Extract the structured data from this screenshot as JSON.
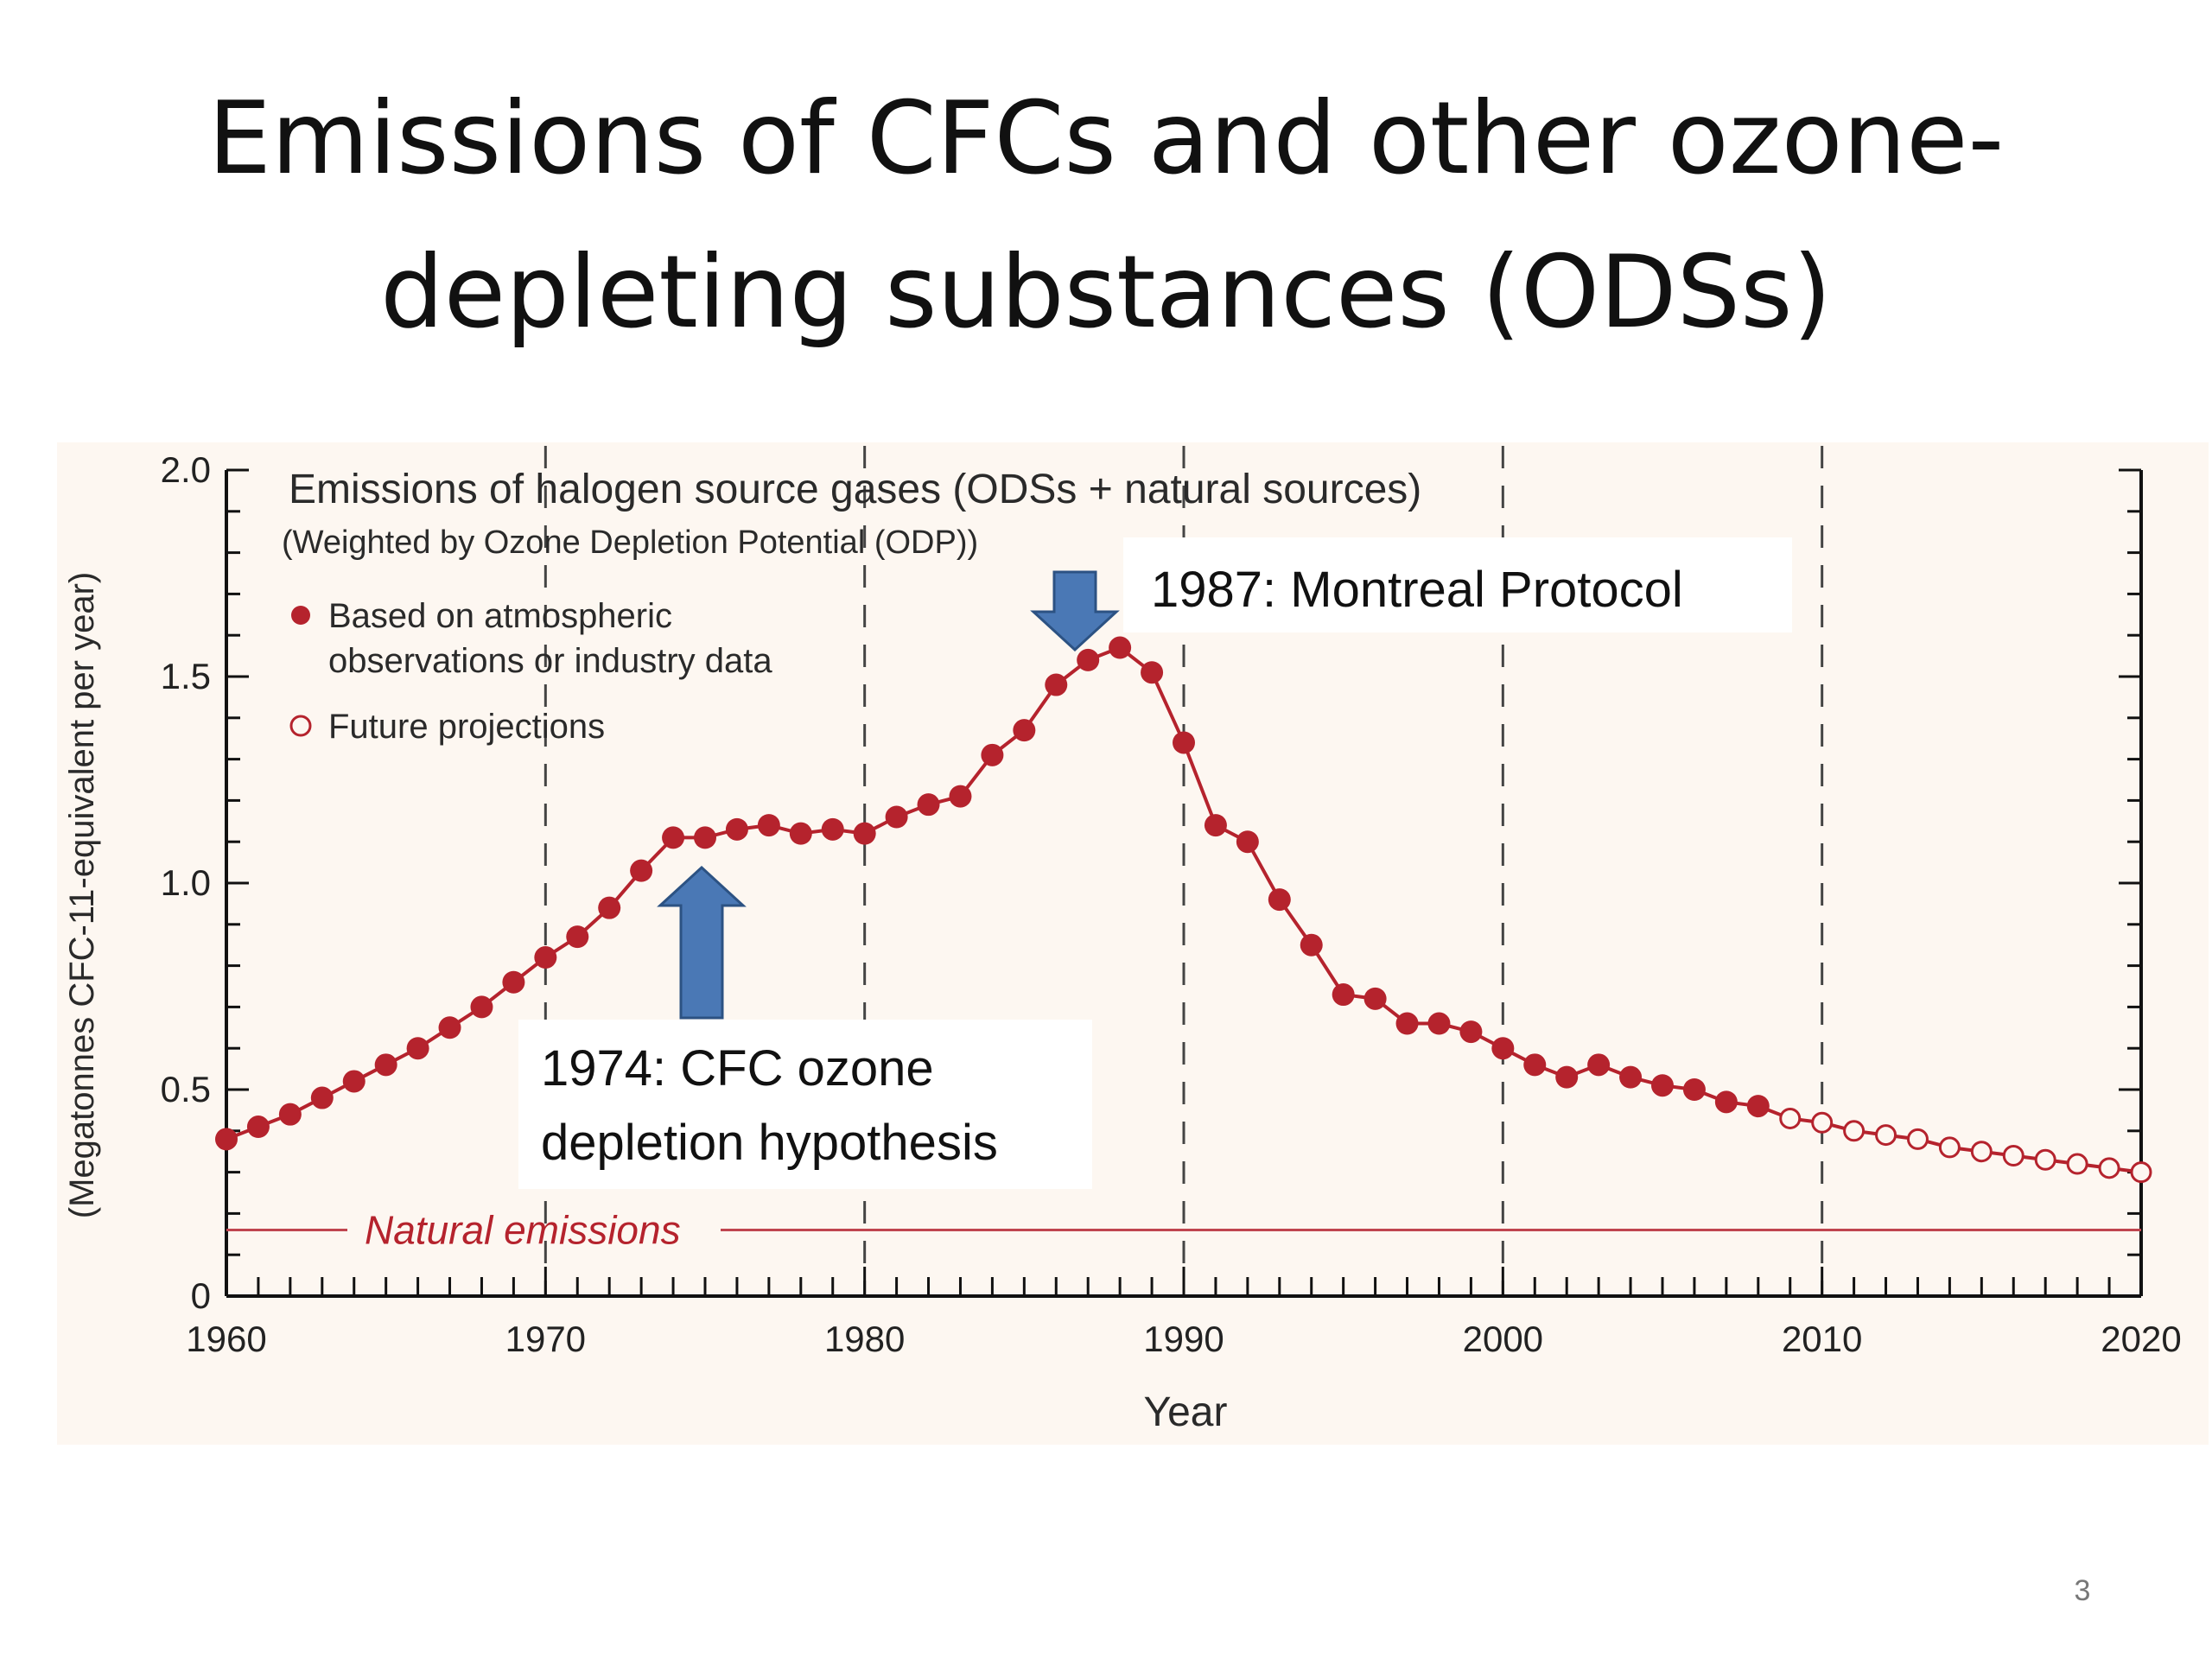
{
  "slide": {
    "title_line1": "Emissions of CFCs and other ozone-",
    "title_line2": "depleting substances (ODSs)",
    "page_number": "3"
  },
  "colors": {
    "series": "#b5232d",
    "natural_line": "#c0454f",
    "plot_background": "#fdf7f1",
    "arrow_fill": "#4a78b5",
    "arrow_stroke": "#2c5283"
  },
  "annotations": {
    "montreal": "1987: Montreal Protocol",
    "hypothesis_line1": "1974: CFC ozone",
    "hypothesis_line2": "depletion hypothesis"
  },
  "chart_data": {
    "type": "line",
    "title": "Emissions of halogen source gases (ODSs + natural sources)",
    "subtitle": "(Weighted by Ozone Depletion Potential (ODP))",
    "xlabel": "Year",
    "ylabel": "(Megatonnes CFC-11-equivalent per year)",
    "xlim": [
      1960,
      2020
    ],
    "ylim": [
      0,
      2.0
    ],
    "x_ticks": [
      1960,
      1970,
      1980,
      1990,
      2000,
      2010,
      2020
    ],
    "y_ticks": [
      0,
      0.5,
      1.0,
      1.5,
      2.0
    ],
    "y_tick_labels": [
      "0",
      "0.5",
      "1.0",
      "1.5",
      "2.0"
    ],
    "dashed_vertical_lines": [
      1970,
      1980,
      1990,
      2000,
      2010
    ],
    "legend": {
      "placement": "top-left",
      "observed_line1": "Based on atmospheric",
      "observed_line2": "observations or industry data",
      "projected": "Future projections"
    },
    "natural_emissions": {
      "label": "Natural emissions",
      "value": 0.16
    },
    "series": [
      {
        "name": "Based on atmospheric observations or industry data",
        "marker": "filled",
        "x": [
          1960,
          1961,
          1962,
          1963,
          1964,
          1965,
          1966,
          1967,
          1968,
          1969,
          1970,
          1971,
          1972,
          1973,
          1974,
          1975,
          1976,
          1977,
          1978,
          1979,
          1980,
          1981,
          1982,
          1983,
          1984,
          1985,
          1986,
          1987,
          1988,
          1989,
          1990,
          1991,
          1992,
          1993,
          1994,
          1995,
          1996,
          1997,
          1998,
          1999,
          2000,
          2001,
          2002,
          2003,
          2004,
          2005,
          2006,
          2007,
          2008
        ],
        "y": [
          0.38,
          0.41,
          0.44,
          0.48,
          0.52,
          0.56,
          0.6,
          0.65,
          0.7,
          0.76,
          0.82,
          0.87,
          0.94,
          1.03,
          1.11,
          1.11,
          1.13,
          1.14,
          1.12,
          1.13,
          1.12,
          1.16,
          1.19,
          1.21,
          1.31,
          1.37,
          1.48,
          1.54,
          1.57,
          1.51,
          1.34,
          1.14,
          1.1,
          0.96,
          0.85,
          0.73,
          0.72,
          0.66,
          0.66,
          0.64,
          0.6,
          0.56,
          0.53,
          0.56,
          0.53,
          0.51,
          0.5,
          0.47,
          0.46
        ]
      },
      {
        "name": "Future projections",
        "marker": "open",
        "x": [
          2009,
          2010,
          2011,
          2012,
          2013,
          2014,
          2015,
          2016,
          2017,
          2018,
          2019,
          2020
        ],
        "y": [
          0.43,
          0.42,
          0.4,
          0.39,
          0.38,
          0.36,
          0.35,
          0.34,
          0.33,
          0.32,
          0.31,
          0.3
        ]
      }
    ]
  }
}
